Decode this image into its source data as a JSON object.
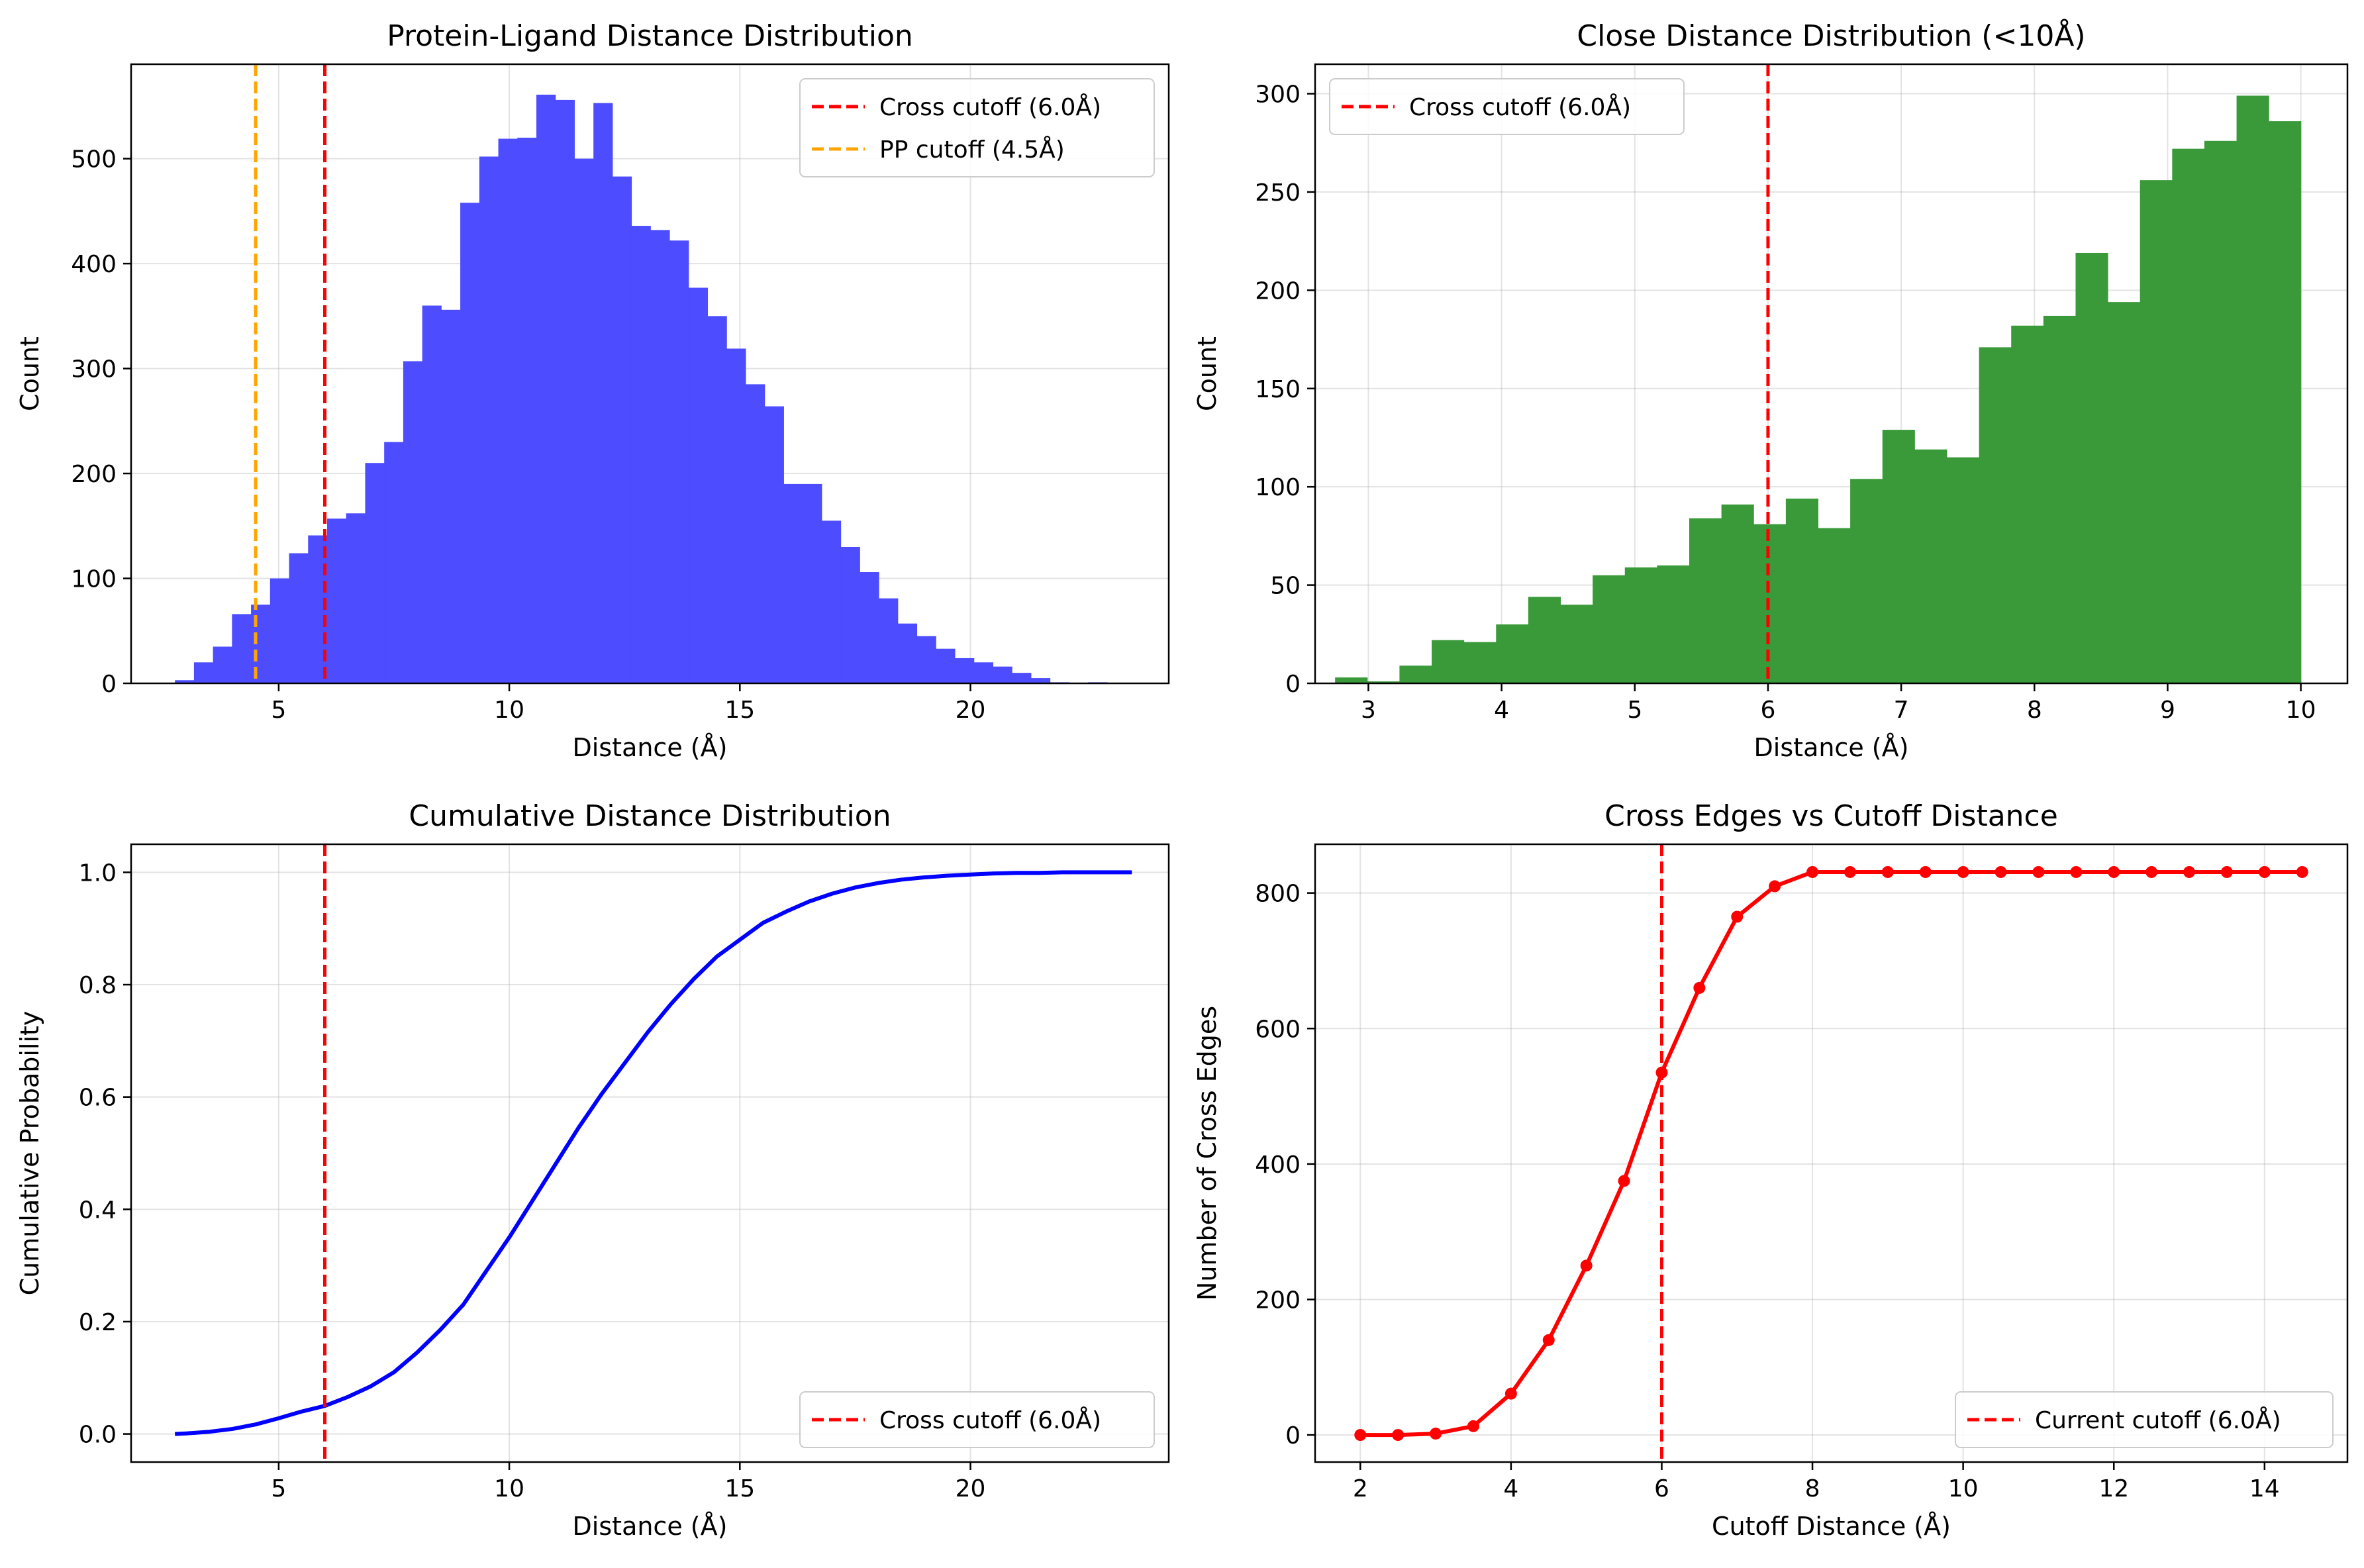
{
  "chart_data": [
    {
      "type": "bar",
      "title": "Protein-Ligand Distance Distribution",
      "xlabel": "Distance (Å)",
      "ylabel": "Count",
      "xlim": [
        1.8,
        24.3
      ],
      "ylim": [
        0,
        590
      ],
      "xticks": [
        5,
        10,
        15,
        20
      ],
      "yticks": [
        0,
        100,
        200,
        300,
        400,
        500
      ],
      "grid": true,
      "legend_position": "top-right",
      "bin_start": 2.75,
      "bin_width": 0.4125,
      "color": "#4d4dff",
      "values": [
        3,
        20,
        35,
        66,
        75,
        100,
        124,
        141,
        157,
        162,
        210,
        230,
        307,
        360,
        356,
        458,
        502,
        519,
        520,
        561,
        556,
        500,
        553,
        483,
        436,
        432,
        422,
        377,
        350,
        319,
        285,
        264,
        190,
        190,
        155,
        130,
        106,
        81,
        57,
        45,
        33,
        24,
        20,
        16,
        10,
        5,
        1,
        0,
        1
      ],
      "vlines": [
        {
          "x": 6.0,
          "color": "#ff0000",
          "label": "Cross cutoff (6.0Å)"
        },
        {
          "x": 4.5,
          "color": "#ffa500",
          "label": "PP cutoff (4.5Å)"
        }
      ]
    },
    {
      "type": "bar",
      "title": "Close Distance Distribution (<10Å)",
      "xlabel": "Distance (Å)",
      "ylabel": "Count",
      "xlim": [
        2.6,
        10.35
      ],
      "ylim": [
        0,
        315
      ],
      "xticks": [
        3,
        4,
        5,
        6,
        7,
        8,
        9,
        10
      ],
      "yticks": [
        0,
        50,
        100,
        150,
        200,
        250,
        300
      ],
      "grid": true,
      "legend_position": "top-left",
      "bin_start": 2.75,
      "bin_width": 0.2417,
      "color": "#3a9a3a",
      "values": [
        3,
        1,
        9,
        22,
        21,
        30,
        44,
        40,
        55,
        59,
        60,
        84,
        91,
        81,
        94,
        79,
        104,
        129,
        119,
        115,
        171,
        182,
        187,
        219,
        194,
        256,
        272,
        276,
        299,
        286
      ],
      "vlines": [
        {
          "x": 6.0,
          "color": "#ff0000",
          "label": "Cross cutoff (6.0Å)"
        }
      ]
    },
    {
      "type": "line",
      "title": "Cumulative Distance Distribution",
      "xlabel": "Distance (Å)",
      "ylabel": "Cumulative Probability",
      "xlim": [
        1.8,
        24.3
      ],
      "ylim": [
        -0.05,
        1.05
      ],
      "xticks": [
        5,
        10,
        15,
        20
      ],
      "yticks": [
        0.0,
        0.2,
        0.4,
        0.6,
        0.8,
        1.0
      ],
      "ytick_format": 1,
      "grid": true,
      "legend_position": "bottom-right",
      "series": [
        {
          "color": "#0000ff",
          "x": [
            2.75,
            3.0,
            3.5,
            4.0,
            4.5,
            5.0,
            5.5,
            6.0,
            6.5,
            7.0,
            7.5,
            8.0,
            8.5,
            9.0,
            9.5,
            10.0,
            10.5,
            11.0,
            11.5,
            12.0,
            12.5,
            13.0,
            13.5,
            14.0,
            14.5,
            15.0,
            15.5,
            16.0,
            16.5,
            17.0,
            17.5,
            18.0,
            18.5,
            19.0,
            19.5,
            20.0,
            20.5,
            21.0,
            21.5,
            22.0,
            22.5,
            23.0,
            23.5
          ],
          "y": [
            0.0,
            0.001,
            0.004,
            0.009,
            0.017,
            0.028,
            0.04,
            0.05,
            0.066,
            0.085,
            0.11,
            0.145,
            0.185,
            0.23,
            0.29,
            0.35,
            0.415,
            0.48,
            0.545,
            0.605,
            0.66,
            0.715,
            0.765,
            0.81,
            0.85,
            0.88,
            0.91,
            0.93,
            0.948,
            0.962,
            0.973,
            0.981,
            0.987,
            0.991,
            0.994,
            0.996,
            0.998,
            0.999,
            0.999,
            1.0,
            1.0,
            1.0,
            1.0
          ]
        }
      ],
      "vlines": [
        {
          "x": 6.0,
          "color": "#ff0000",
          "label": "Cross cutoff (6.0Å)"
        }
      ]
    },
    {
      "type": "line",
      "title": "Cross Edges vs Cutoff Distance",
      "xlabel": "Cutoff Distance (Å)",
      "ylabel": "Number of Cross Edges",
      "xlim": [
        1.4,
        15.1
      ],
      "ylim": [
        -40,
        872
      ],
      "xticks": [
        2,
        4,
        6,
        8,
        10,
        12,
        14
      ],
      "yticks": [
        0,
        200,
        400,
        600,
        800
      ],
      "grid": true,
      "legend_position": "bottom-right",
      "series": [
        {
          "color": "#ff0000",
          "markers": true,
          "x": [
            2.0,
            2.5,
            3.0,
            3.5,
            4.0,
            4.5,
            5.0,
            5.5,
            6.0,
            6.5,
            7.0,
            7.5,
            8.0,
            8.5,
            9.0,
            9.5,
            10.0,
            10.5,
            11.0,
            11.5,
            12.0,
            12.5,
            13.0,
            13.5,
            14.0,
            14.5
          ],
          "y": [
            0,
            0,
            2,
            13,
            61,
            140,
            250,
            375,
            535,
            660,
            765,
            810,
            831,
            831,
            831,
            831,
            831,
            831,
            831,
            831,
            831,
            831,
            831,
            831,
            831,
            831
          ]
        }
      ],
      "vlines": [
        {
          "x": 6.0,
          "color": "#ff0000",
          "label": "Current cutoff (6.0Å)"
        }
      ]
    }
  ]
}
